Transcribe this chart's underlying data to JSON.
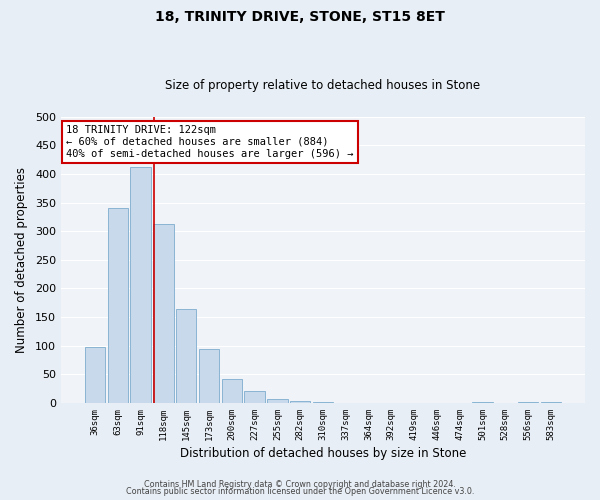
{
  "title": "18, TRINITY DRIVE, STONE, ST15 8ET",
  "subtitle": "Size of property relative to detached houses in Stone",
  "bar_labels": [
    "36sqm",
    "63sqm",
    "91sqm",
    "118sqm",
    "145sqm",
    "173sqm",
    "200sqm",
    "227sqm",
    "255sqm",
    "282sqm",
    "310sqm",
    "337sqm",
    "364sqm",
    "392sqm",
    "419sqm",
    "446sqm",
    "474sqm",
    "501sqm",
    "528sqm",
    "556sqm",
    "583sqm"
  ],
  "bar_values": [
    97,
    340,
    413,
    312,
    164,
    94,
    42,
    20,
    7,
    3,
    2,
    0,
    0,
    0,
    0,
    0,
    0,
    2,
    0,
    2,
    2
  ],
  "bar_color": "#c8d9ec",
  "bar_edge_color": "#8ab4d4",
  "annotation_title": "18 TRINITY DRIVE: 122sqm",
  "annotation_line1": "← 60% of detached houses are smaller (884)",
  "annotation_line2": "40% of semi-detached houses are larger (596) →",
  "annotation_box_color": "#ffffff",
  "annotation_box_edge": "#cc0000",
  "xlabel": "Distribution of detached houses by size in Stone",
  "ylabel": "Number of detached properties",
  "ylim": [
    0,
    500
  ],
  "yticks": [
    0,
    50,
    100,
    150,
    200,
    250,
    300,
    350,
    400,
    450,
    500
  ],
  "footer1": "Contains HM Land Registry data © Crown copyright and database right 2024.",
  "footer2": "Contains public sector information licensed under the Open Government Licence v3.0.",
  "bg_color": "#e8eef5",
  "plot_bg_color": "#f0f4f9",
  "grid_color": "#ffffff",
  "vline_color": "#cc0000",
  "vline_x": 2.575
}
